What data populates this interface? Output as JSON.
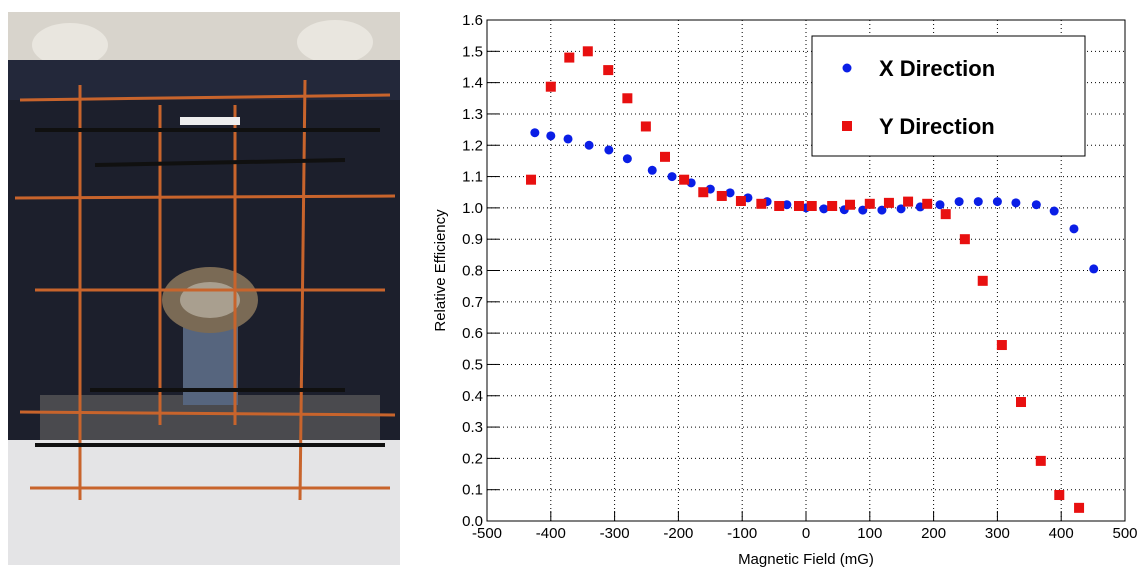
{
  "chart_data": {
    "type": "scatter",
    "xlabel": "Magnetic Field (mG)",
    "ylabel": "Relative Efficiency",
    "xlim": [
      -500,
      500
    ],
    "xticks": [
      -500,
      -400,
      -300,
      -200,
      -100,
      0,
      100,
      200,
      300,
      400,
      500
    ],
    "ylim": [
      0,
      1.6
    ],
    "yticks": [
      {
        "value": 0,
        "label": "0.0"
      },
      0.1,
      0.2,
      0.3,
      0.4,
      0.5,
      0.6,
      0.7,
      0.8,
      0.9,
      {
        "value": 1,
        "label": "1.0"
      },
      1.1,
      1.2,
      1.3,
      1.4,
      1.5,
      1.6
    ],
    "grid": true,
    "legend": "upper right",
    "series": [
      {
        "name": "X Direction",
        "color": "#0a1ee6",
        "marker": "circle",
        "x": [
          -425,
          -400,
          -373,
          -340,
          -309,
          -280,
          -241,
          -210,
          -180,
          -150,
          -119,
          -91,
          -61,
          -30,
          0,
          28,
          60,
          89,
          119,
          149,
          179,
          210,
          240,
          270,
          300,
          329,
          361,
          389,
          420,
          451
        ],
        "values": [
          1.24,
          1.23,
          1.22,
          1.2,
          1.185,
          1.157,
          1.12,
          1.1,
          1.08,
          1.06,
          1.048,
          1.032,
          1.02,
          1.01,
          1.0,
          0.997,
          0.994,
          0.993,
          0.993,
          0.997,
          1.003,
          1.01,
          1.02,
          1.02,
          1.02,
          1.016,
          1.01,
          0.99,
          0.933,
          0.805
        ]
      },
      {
        "name": "Y Direction",
        "color": "#e81010",
        "marker": "square",
        "x": [
          -431,
          -400,
          -371,
          -342,
          -310,
          -280,
          -251,
          -221,
          -191,
          -161,
          -132,
          -102,
          -70,
          -42,
          -11,
          9,
          41,
          69,
          100,
          130,
          160,
          190,
          219,
          249,
          277,
          307,
          337,
          368,
          397,
          428
        ],
        "values": [
          1.09,
          1.387,
          1.48,
          1.5,
          1.44,
          1.35,
          1.26,
          1.163,
          1.09,
          1.05,
          1.038,
          1.022,
          1.013,
          1.006,
          1.006,
          1.006,
          1.006,
          1.01,
          1.013,
          1.016,
          1.02,
          1.013,
          0.98,
          0.9,
          0.767,
          0.562,
          0.38,
          0.192,
          0.083,
          0.042
        ]
      }
    ]
  }
}
